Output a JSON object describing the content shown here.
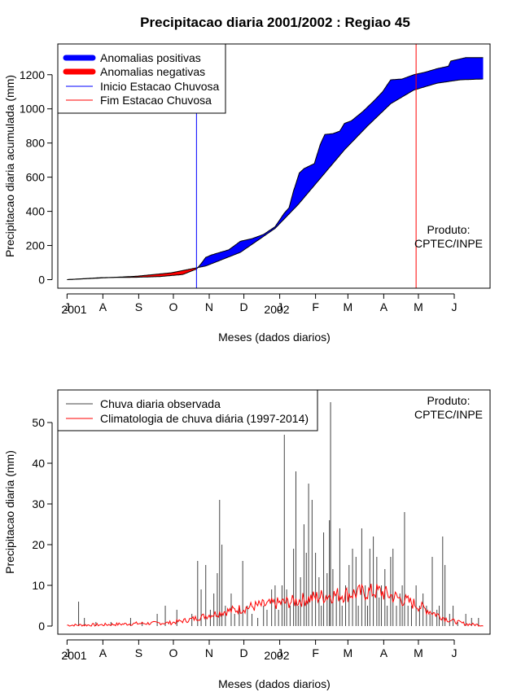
{
  "chart_data": [
    {
      "type": "area",
      "title": "Precipitacao diaria 2001/2002 : Regiao 45",
      "xlabel": "Meses (dados diarios)",
      "ylabel": "Precipitacao diaria acumulada (mm)",
      "x_ticks": [
        "J",
        "A",
        "S",
        "O",
        "N",
        "D",
        "J",
        "F",
        "M",
        "A",
        "M",
        "J"
      ],
      "year_labels": [
        "2001",
        "2002"
      ],
      "y_ticks": [
        0,
        200,
        400,
        600,
        800,
        1000,
        1200
      ],
      "xlim_days": [
        -8,
        366
      ],
      "ylim": [
        -50,
        1380
      ],
      "legend": {
        "position": "top-left",
        "items": [
          {
            "label": "Anomalias positivas",
            "color": "#0000ff",
            "kind": "thick"
          },
          {
            "label": "Anomalias negativas",
            "color": "#ff0000",
            "kind": "thick"
          },
          {
            "label": "Inicio Estacao Chuvosa",
            "color": "#0000ff",
            "kind": "thin"
          },
          {
            "label": "Fim Estacao Chuvosa",
            "color": "#ff0000",
            "kind": "thin"
          }
        ]
      },
      "annotation": [
        "Produto:",
        "CPTEC/INPE"
      ],
      "onset_day": 112,
      "end_day": 302,
      "climatology_cumulative": [
        [
          0,
          0
        ],
        [
          30,
          10
        ],
        [
          60,
          20
        ],
        [
          90,
          40
        ],
        [
          120,
          80
        ],
        [
          150,
          160
        ],
        [
          180,
          300
        ],
        [
          200,
          440
        ],
        [
          220,
          600
        ],
        [
          240,
          760
        ],
        [
          260,
          900
        ],
        [
          280,
          1030
        ],
        [
          300,
          1110
        ],
        [
          320,
          1150
        ],
        [
          340,
          1170
        ],
        [
          360,
          1175
        ]
      ],
      "observed_cumulative": [
        [
          0,
          0
        ],
        [
          30,
          12
        ],
        [
          60,
          14
        ],
        [
          80,
          18
        ],
        [
          100,
          30
        ],
        [
          112,
          62
        ],
        [
          115,
          85
        ],
        [
          120,
          130
        ],
        [
          125,
          145
        ],
        [
          140,
          175
        ],
        [
          150,
          225
        ],
        [
          160,
          240
        ],
        [
          170,
          265
        ],
        [
          180,
          310
        ],
        [
          188,
          390
        ],
        [
          192,
          420
        ],
        [
          196,
          520
        ],
        [
          201,
          625
        ],
        [
          205,
          650
        ],
        [
          214,
          680
        ],
        [
          219,
          790
        ],
        [
          223,
          850
        ],
        [
          230,
          855
        ],
        [
          236,
          870
        ],
        [
          240,
          915
        ],
        [
          246,
          930
        ],
        [
          256,
          985
        ],
        [
          266,
          1050
        ],
        [
          273,
          1100
        ],
        [
          280,
          1170
        ],
        [
          290,
          1175
        ],
        [
          300,
          1200
        ],
        [
          310,
          1215
        ],
        [
          320,
          1235
        ],
        [
          330,
          1250
        ],
        [
          332,
          1280
        ],
        [
          345,
          1300
        ],
        [
          360,
          1300
        ]
      ]
    },
    {
      "type": "bar",
      "xlabel": "Meses (dados diarios)",
      "ylabel": "Precipitacao diaria (mm)",
      "x_ticks": [
        "J",
        "A",
        "S",
        "O",
        "N",
        "D",
        "J",
        "F",
        "M",
        "A",
        "M",
        "J"
      ],
      "year_labels": [
        "2001",
        "2002"
      ],
      "y_ticks": [
        0,
        10,
        20,
        30,
        40,
        50
      ],
      "xlim_days": [
        -8,
        366
      ],
      "ylim": [
        -2,
        58
      ],
      "legend": {
        "position": "top-left",
        "items": [
          {
            "label": "Chuva diaria observada",
            "color": "#444444"
          },
          {
            "label": "Climatologia de chuva diária (1997-2014)",
            "color": "#ff0000"
          }
        ]
      },
      "annotation": [
        "Produto:",
        "CPTEC/INPE"
      ],
      "daily_peaks": [
        [
          10,
          6
        ],
        [
          15,
          2
        ],
        [
          25,
          1
        ],
        [
          38,
          1
        ],
        [
          55,
          2
        ],
        [
          65,
          1
        ],
        [
          78,
          3
        ],
        [
          85,
          5
        ],
        [
          95,
          4
        ],
        [
          108,
          3
        ],
        [
          113,
          16
        ],
        [
          116,
          9
        ],
        [
          120,
          15
        ],
        [
          124,
          4
        ],
        [
          127,
          8
        ],
        [
          130,
          13
        ],
        [
          132,
          31
        ],
        [
          134,
          20
        ],
        [
          137,
          5
        ],
        [
          142,
          8
        ],
        [
          145,
          3
        ],
        [
          149,
          5
        ],
        [
          152,
          16
        ],
        [
          156,
          5
        ],
        [
          160,
          3
        ],
        [
          165,
          2
        ],
        [
          170,
          5
        ],
        [
          173,
          4
        ],
        [
          177,
          9
        ],
        [
          180,
          10
        ],
        [
          183,
          4
        ],
        [
          186,
          10
        ],
        [
          188,
          47
        ],
        [
          190,
          9
        ],
        [
          193,
          5
        ],
        [
          196,
          19
        ],
        [
          198,
          38
        ],
        [
          200,
          5
        ],
        [
          202,
          12
        ],
        [
          205,
          25
        ],
        [
          207,
          18
        ],
        [
          209,
          35
        ],
        [
          212,
          31
        ],
        [
          215,
          18
        ],
        [
          218,
          12
        ],
        [
          220,
          5
        ],
        [
          222,
          23
        ],
        [
          225,
          13
        ],
        [
          227,
          26
        ],
        [
          228,
          55
        ],
        [
          230,
          14
        ],
        [
          233,
          8
        ],
        [
          236,
          24
        ],
        [
          238,
          5
        ],
        [
          241,
          10
        ],
        [
          244,
          15
        ],
        [
          247,
          19
        ],
        [
          250,
          17
        ],
        [
          252,
          5
        ],
        [
          255,
          24
        ],
        [
          258,
          10
        ],
        [
          260,
          5
        ],
        [
          262,
          19
        ],
        [
          265,
          22
        ],
        [
          268,
          17
        ],
        [
          270,
          7
        ],
        [
          272,
          10
        ],
        [
          275,
          14
        ],
        [
          277,
          5
        ],
        [
          280,
          17
        ],
        [
          282,
          19
        ],
        [
          285,
          5
        ],
        [
          288,
          8
        ],
        [
          290,
          10
        ],
        [
          292,
          28
        ],
        [
          295,
          5
        ],
        [
          298,
          5
        ],
        [
          302,
          10
        ],
        [
          305,
          5
        ],
        [
          308,
          8
        ],
        [
          311,
          5
        ],
        [
          314,
          3
        ],
        [
          316,
          17
        ],
        [
          320,
          4
        ],
        [
          322,
          5
        ],
        [
          325,
          22
        ],
        [
          327,
          15
        ],
        [
          331,
          3
        ],
        [
          334,
          5
        ],
        [
          338,
          1
        ],
        [
          345,
          3
        ],
        [
          350,
          2
        ],
        [
          356,
          2
        ]
      ],
      "climatology_daily": [
        [
          0,
          0.2
        ],
        [
          30,
          0.3
        ],
        [
          60,
          0.6
        ],
        [
          90,
          0.8
        ],
        [
          105,
          1.5
        ],
        [
          120,
          2.5
        ],
        [
          135,
          3.5
        ],
        [
          150,
          4.2
        ],
        [
          165,
          5.0
        ],
        [
          180,
          5.5
        ],
        [
          195,
          6.0
        ],
        [
          210,
          6.8
        ],
        [
          225,
          7.5
        ],
        [
          240,
          7.8
        ],
        [
          255,
          8.2
        ],
        [
          270,
          8.5
        ],
        [
          285,
          7.0
        ],
        [
          300,
          5.5
        ],
        [
          315,
          3.5
        ],
        [
          330,
          1.5
        ],
        [
          345,
          0.5
        ],
        [
          360,
          0.2
        ]
      ]
    }
  ]
}
